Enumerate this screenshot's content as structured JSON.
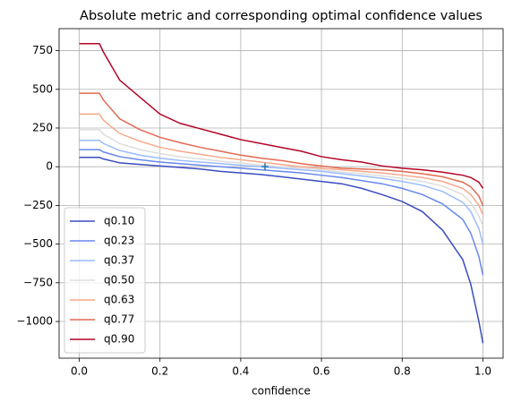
{
  "chart_data": {
    "type": "line",
    "title": "Absolute metric and corresponding optimal confidence values",
    "x_label": "confidence",
    "x": [
      0,
      0.05,
      0.06,
      0.1,
      0.15,
      0.2,
      0.25,
      0.3,
      0.35,
      0.4,
      0.45,
      0.5,
      0.55,
      0.6,
      0.65,
      0.7,
      0.75,
      0.8,
      0.85,
      0.9,
      0.95,
      0.97,
      0.99,
      1.0
    ],
    "series": [
      {
        "name": "q0.10",
        "color": "#3b4cc0",
        "values": [
          60,
          60,
          50,
          25,
          15,
          5,
          -5,
          -15,
          -30,
          -40,
          -50,
          -65,
          -80,
          -95,
          -110,
          -140,
          -180,
          -225,
          -290,
          -410,
          -600,
          -760,
          -1000,
          -1140
        ]
      },
      {
        "name": "q0.23",
        "color": "#6788ee",
        "values": [
          110,
          110,
          95,
          65,
          45,
          30,
          20,
          10,
          0,
          -10,
          -20,
          -30,
          -40,
          -55,
          -70,
          -90,
          -110,
          -140,
          -180,
          -240,
          -340,
          -430,
          -580,
          -700
        ]
      },
      {
        "name": "q0.37",
        "color": "#9abbff",
        "values": [
          170,
          170,
          150,
          105,
          75,
          55,
          40,
          30,
          20,
          10,
          0,
          -10,
          -20,
          -30,
          -45,
          -60,
          -75,
          -95,
          -120,
          -160,
          -230,
          -290,
          -400,
          -500
        ]
      },
      {
        "name": "q0.50",
        "color": "#dddddd",
        "values": [
          240,
          240,
          210,
          150,
          110,
          85,
          65,
          50,
          35,
          25,
          10,
          0,
          -10,
          -20,
          -35,
          -45,
          -60,
          -75,
          -95,
          -125,
          -180,
          -230,
          -320,
          -380
        ]
      },
      {
        "name": "q0.63",
        "color": "#f7a889",
        "values": [
          340,
          340,
          300,
          215,
          165,
          125,
          100,
          80,
          60,
          45,
          30,
          15,
          0,
          -10,
          -20,
          -30,
          -40,
          -55,
          -70,
          -95,
          -140,
          -180,
          -250,
          -310
        ]
      },
      {
        "name": "q0.77",
        "color": "#e26952",
        "values": [
          475,
          475,
          430,
          310,
          240,
          190,
          155,
          125,
          100,
          75,
          55,
          40,
          20,
          5,
          -10,
          -15,
          -20,
          -30,
          -45,
          -65,
          -100,
          -130,
          -190,
          -250
        ]
      },
      {
        "name": "q0.90",
        "color": "#b40426",
        "values": [
          795,
          795,
          740,
          560,
          450,
          340,
          280,
          245,
          210,
          175,
          150,
          125,
          100,
          65,
          45,
          30,
          5,
          -10,
          -20,
          -35,
          -55,
          -70,
          -100,
          -140
        ]
      }
    ],
    "marker": {
      "x": 0.46,
      "y": 0,
      "color": "#1f77b4"
    },
    "xlim": [
      -0.05,
      1.05
    ],
    "xticks": [
      {
        "value": 0,
        "label": "0.0"
      },
      0.2,
      0.4,
      0.6,
      0.8,
      {
        "value": 1,
        "label": "1.0"
      }
    ],
    "ylim": [
      -1237,
      892
    ],
    "yticks": [
      {
        "value": -1000,
        "label": "−1000"
      },
      {
        "value": -750,
        "label": "−750"
      },
      {
        "value": -500,
        "label": "−500"
      },
      {
        "value": -250,
        "label": "−250"
      },
      0,
      250,
      500,
      750
    ],
    "grid": true,
    "legend": "lower left"
  }
}
